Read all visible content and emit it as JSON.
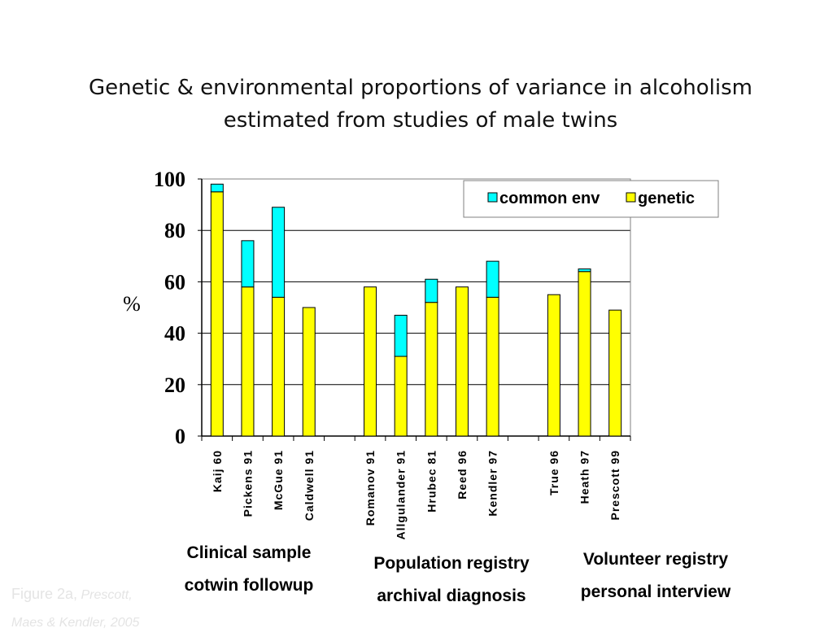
{
  "slide": {
    "title_line1": "Genetic & environmental proportions of variance in alcoholism",
    "title_line2": "estimated from studies of male twins"
  },
  "chart_data": {
    "type": "bar",
    "stacked": true,
    "ylabel": "%",
    "ylim": [
      0,
      100
    ],
    "yticks": [
      0,
      20,
      40,
      60,
      80,
      100
    ],
    "grid": true,
    "legend_position": "top-right",
    "categories": [
      "Kaij 60",
      "Pickens 91",
      "McGue 91",
      "Caldwell 91",
      "",
      "Romanov 91",
      "Allgulander 91",
      "Hrubec 81",
      "Reed 96",
      "Kendler 97",
      "",
      "True 96",
      "Heath 97",
      "Prescott 99"
    ],
    "series": [
      {
        "name": "genetic",
        "color": "#ffff00",
        "values": [
          95,
          58,
          54,
          50,
          null,
          58,
          31,
          52,
          58,
          54,
          null,
          55,
          64,
          49
        ]
      },
      {
        "name": "common env",
        "color": "#00ffff",
        "values": [
          3,
          18,
          35,
          0,
          null,
          0,
          16,
          9,
          0,
          14,
          null,
          0,
          1,
          0
        ]
      }
    ],
    "group_labels": [
      {
        "line1": "Clinical sample",
        "line2": "cotwin followup"
      },
      {
        "line1": "Population registry",
        "line2": "archival diagnosis"
      },
      {
        "line1": "Volunteer registry",
        "line2": "personal interview"
      }
    ]
  },
  "caption": {
    "text": "Figure 2a,",
    "italic_1": "Prescott,",
    "italic_2": "Maes & Kendler, 2005"
  }
}
